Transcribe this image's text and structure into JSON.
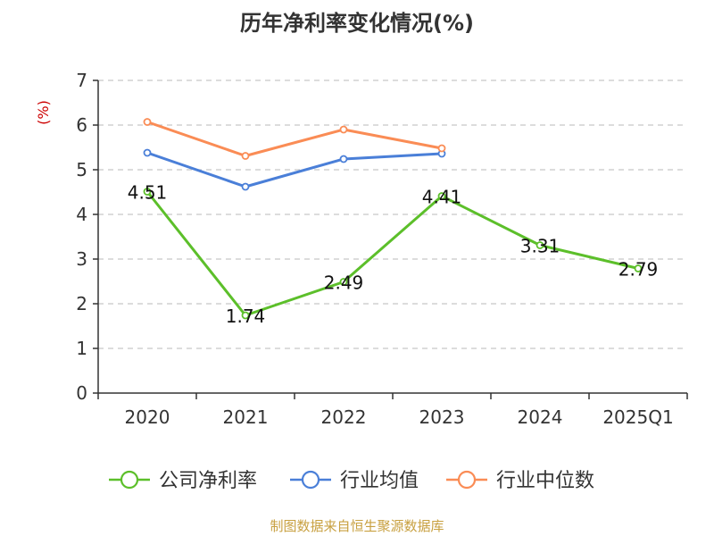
{
  "title": "历年净利率变化情况(%)",
  "source": "制图数据来自恒生聚源数据库",
  "chart_data": {
    "type": "line",
    "title": "历年净利率变化情况(%)",
    "ylabel": "(%)",
    "ylim": [
      0,
      7
    ],
    "yticks": [
      "0",
      "1",
      "2",
      "3",
      "4",
      "5",
      "6",
      "7"
    ],
    "categories": [
      "2020",
      "2021",
      "2022",
      "2023",
      "2024",
      "2025Q1"
    ],
    "grid": true,
    "legend_position": "bottom",
    "series": [
      {
        "name": "公司净利率",
        "color": "#5cbf2a",
        "values": [
          4.51,
          1.74,
          2.49,
          4.41,
          3.31,
          2.79
        ],
        "labels": [
          "4.51",
          "1.74",
          "2.49",
          "4.41",
          "3.31",
          "2.79"
        ]
      },
      {
        "name": "行业均值",
        "color": "#4a7fd8",
        "values": [
          5.38,
          4.62,
          5.24,
          5.36,
          null,
          null
        ]
      },
      {
        "name": "行业中位数",
        "color": "#fa8c55",
        "values": [
          6.07,
          5.31,
          5.9,
          5.48,
          null,
          null
        ]
      }
    ]
  }
}
